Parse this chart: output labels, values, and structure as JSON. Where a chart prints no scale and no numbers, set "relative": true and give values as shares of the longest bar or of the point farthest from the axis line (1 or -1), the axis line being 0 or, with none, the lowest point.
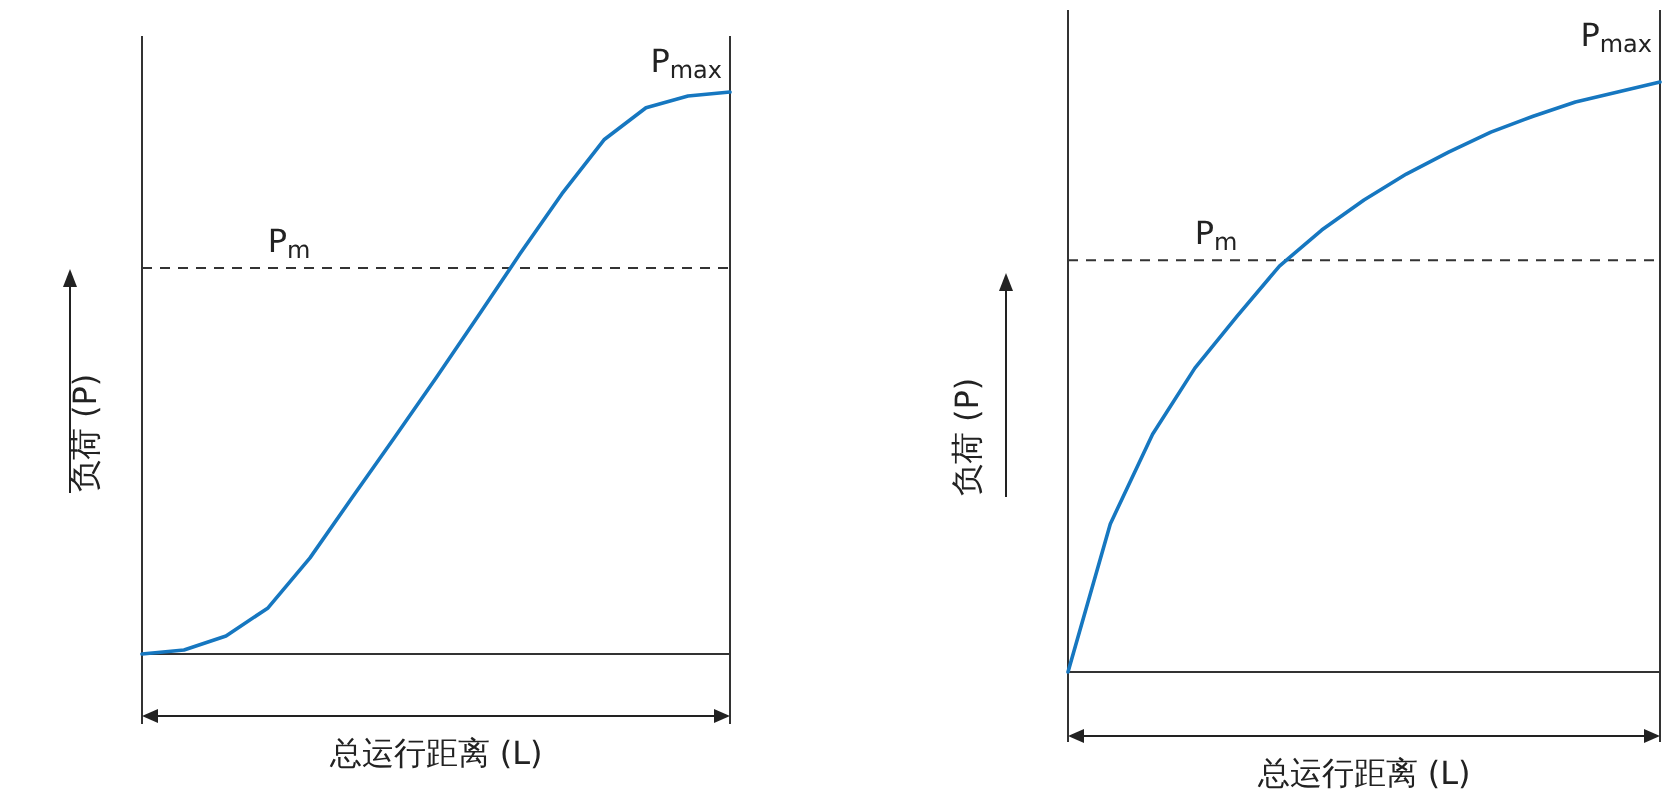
{
  "chart_data": [
    {
      "type": "line",
      "relative": true,
      "xlabel": "总运行距离 (L)",
      "ylabel": "负荷 (P)",
      "categories": [
        null,
        null,
        null,
        null,
        null,
        null,
        null,
        null,
        null,
        null,
        null,
        null,
        null,
        null,
        null
      ],
      "series": [
        {
          "color": "#1677c0",
          "values": [
            0,
            0.007,
            0.032,
            0.082,
            0.171,
            0.278,
            0.384,
            0.491,
            0.601,
            0.712,
            0.819,
            0.915,
            0.972,
            0.993,
            1
          ]
        }
      ],
      "ref_lines": [
        {
          "axis": "y",
          "value": 0.687,
          "label": "P$_{m}$",
          "color": "#333333",
          "line_style": "dashed"
        }
      ],
      "annotations": [
        "P$_{max}$"
      ]
    },
    {
      "type": "line",
      "relative": true,
      "xlabel": "总运行距离 (L)",
      "ylabel": "负荷 (P)",
      "categories": [
        null,
        null,
        null,
        null,
        null,
        null,
        null,
        null,
        null,
        null,
        null,
        null,
        null,
        null,
        null
      ],
      "series": [
        {
          "color": "#1677c0",
          "values": [
            0,
            0.251,
            0.403,
            0.515,
            0.603,
            0.688,
            0.749,
            0.8,
            0.844,
            0.881,
            0.915,
            0.942,
            0.966,
            0.983,
            1
          ]
        }
      ],
      "ref_lines": [
        {
          "axis": "y",
          "value": 0.698,
          "label": "P$_{m}$",
          "color": "#333333",
          "line_style": "dashed"
        }
      ],
      "annotations": [
        "P$_{max}$"
      ]
    }
  ]
}
